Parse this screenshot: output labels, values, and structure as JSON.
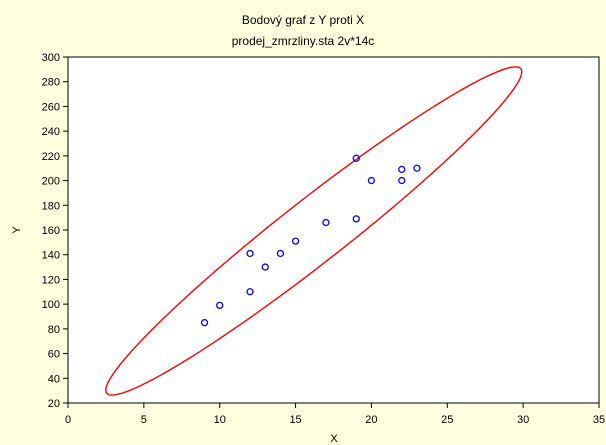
{
  "chart_data": {
    "type": "scatter",
    "title": "Bodový graf z Y proti X",
    "subtitle": "prodej_zmrzliny.sta 2v*14c",
    "xlabel": "X",
    "ylabel": "Y",
    "xlim": [
      0,
      35
    ],
    "ylim": [
      20,
      300
    ],
    "x_ticks": [
      0,
      5,
      10,
      15,
      20,
      25,
      30,
      35
    ],
    "y_ticks": [
      20,
      40,
      60,
      80,
      100,
      120,
      140,
      160,
      180,
      200,
      220,
      240,
      260,
      280,
      300
    ],
    "grid": false,
    "legend": false,
    "series": [
      {
        "points": [
          {
            "x": 9,
            "y": 85
          },
          {
            "x": 10,
            "y": 99
          },
          {
            "x": 12,
            "y": 110
          },
          {
            "x": 12,
            "y": 141
          },
          {
            "x": 13,
            "y": 130
          },
          {
            "x": 14,
            "y": 141
          },
          {
            "x": 15,
            "y": 151
          },
          {
            "x": 17,
            "y": 166
          },
          {
            "x": 19,
            "y": 169
          },
          {
            "x": 19,
            "y": 218
          },
          {
            "x": 20,
            "y": 200
          },
          {
            "x": 22,
            "y": 200
          },
          {
            "x": 22,
            "y": 209
          },
          {
            "x": 23,
            "y": 210
          }
        ]
      }
    ],
    "ellipse": {
      "type": "confidence-ellipse",
      "center": {
        "x": 16.2,
        "y": 159.2
      },
      "extent_points": [
        {
          "x": 2.6,
          "y": 28
        },
        {
          "x": 29.9,
          "y": 290.5
        }
      ]
    },
    "colors": {
      "background": "#FFFFE0",
      "plot_background": "#FFFFFF",
      "points": "#0000FF",
      "ellipse": "#FF0000",
      "axes": "#000000"
    }
  }
}
